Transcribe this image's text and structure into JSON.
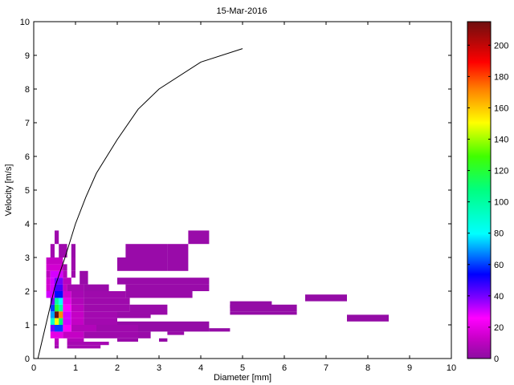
{
  "chart_data": {
    "type": "heatmap",
    "title": "15-Mar-2016",
    "xlabel": "Diameter [mm]",
    "ylabel": "Velocity [m/s]",
    "xlim": [
      0,
      10
    ],
    "ylim": [
      0,
      10
    ],
    "xticks": [
      "0",
      "1",
      "2",
      "3",
      "4",
      "5",
      "6",
      "7",
      "8",
      "9",
      "10"
    ],
    "yticks": [
      "0",
      "1",
      "2",
      "3",
      "4",
      "5",
      "6",
      "7",
      "8",
      "9",
      "10"
    ],
    "grid": false,
    "colorbar": {
      "min": 0,
      "max": 215,
      "ticks": [
        "0",
        "20",
        "40",
        "60",
        "80",
        "100",
        "120",
        "140",
        "160",
        "180",
        "200"
      ],
      "colormap": "hsv"
    },
    "cells": [
      [
        0.5,
        0.3,
        0.6,
        0.4,
        5
      ],
      [
        0.8,
        0.3,
        1.6,
        0.4,
        5
      ],
      [
        0.5,
        0.4,
        0.6,
        0.5,
        8
      ],
      [
        0.8,
        0.4,
        1.8,
        0.5,
        6
      ],
      [
        0.5,
        0.5,
        0.6,
        0.6,
        10
      ],
      [
        0.8,
        0.5,
        1.2,
        0.6,
        8
      ],
      [
        2.0,
        0.5,
        2.5,
        0.6,
        3
      ],
      [
        3.0,
        0.5,
        3.2,
        0.6,
        2
      ],
      [
        0.4,
        0.6,
        0.7,
        0.8,
        20
      ],
      [
        0.7,
        0.6,
        1.2,
        0.8,
        12
      ],
      [
        1.2,
        0.6,
        2.5,
        0.8,
        4
      ],
      [
        2.5,
        0.6,
        2.8,
        0.8,
        3
      ],
      [
        3.2,
        0.7,
        3.6,
        0.8,
        3
      ],
      [
        0.4,
        0.8,
        0.5,
        1.0,
        40
      ],
      [
        0.5,
        0.8,
        0.7,
        1.0,
        60
      ],
      [
        0.7,
        0.8,
        0.9,
        1.0,
        25
      ],
      [
        0.9,
        0.8,
        1.5,
        1.0,
        8
      ],
      [
        1.5,
        0.8,
        2.5,
        1.0,
        4
      ],
      [
        2.5,
        0.8,
        4.2,
        1.0,
        2
      ],
      [
        4.2,
        0.8,
        4.7,
        0.9,
        2
      ],
      [
        0.4,
        1.0,
        0.5,
        1.2,
        90
      ],
      [
        0.5,
        1.0,
        0.6,
        1.2,
        150
      ],
      [
        0.6,
        1.0,
        0.7,
        1.2,
        110
      ],
      [
        0.7,
        1.0,
        0.9,
        1.2,
        30
      ],
      [
        0.9,
        1.0,
        1.2,
        1.2,
        12
      ],
      [
        1.2,
        1.0,
        2.0,
        1.2,
        5
      ],
      [
        2.0,
        1.0,
        3.5,
        1.1,
        2
      ],
      [
        3.5,
        1.0,
        4.2,
        1.1,
        2
      ],
      [
        0.4,
        1.2,
        0.5,
        1.4,
        70
      ],
      [
        0.5,
        1.2,
        0.6,
        1.4,
        215
      ],
      [
        0.6,
        1.2,
        0.7,
        1.4,
        170
      ],
      [
        0.7,
        1.2,
        0.9,
        1.4,
        30
      ],
      [
        0.9,
        1.2,
        1.2,
        1.4,
        12
      ],
      [
        1.2,
        1.2,
        2.0,
        1.4,
        5
      ],
      [
        2.0,
        1.2,
        2.8,
        1.4,
        3
      ],
      [
        0.4,
        1.4,
        0.5,
        1.6,
        60
      ],
      [
        0.5,
        1.4,
        0.6,
        1.6,
        120
      ],
      [
        0.6,
        1.4,
        0.7,
        1.6,
        100
      ],
      [
        0.7,
        1.4,
        0.9,
        1.6,
        25
      ],
      [
        0.9,
        1.4,
        1.2,
        1.6,
        10
      ],
      [
        1.2,
        1.4,
        2.3,
        1.6,
        4
      ],
      [
        2.3,
        1.3,
        3.2,
        1.6,
        3
      ],
      [
        0.4,
        1.6,
        0.5,
        1.8,
        40
      ],
      [
        0.5,
        1.6,
        0.6,
        1.8,
        100
      ],
      [
        0.6,
        1.6,
        0.7,
        1.8,
        80
      ],
      [
        0.7,
        1.6,
        0.9,
        1.8,
        20
      ],
      [
        0.9,
        1.6,
        1.2,
        1.8,
        8
      ],
      [
        1.2,
        1.6,
        2.3,
        1.8,
        4
      ],
      [
        0.3,
        1.8,
        0.5,
        2.0,
        30
      ],
      [
        0.5,
        1.8,
        0.7,
        2.0,
        55
      ],
      [
        0.7,
        1.8,
        0.9,
        2.0,
        15
      ],
      [
        0.9,
        1.8,
        1.2,
        2.0,
        6
      ],
      [
        1.2,
        1.8,
        2.2,
        2.0,
        4
      ],
      [
        2.2,
        1.8,
        3.8,
        2.0,
        3
      ],
      [
        0.3,
        2.0,
        0.4,
        2.2,
        15
      ],
      [
        0.4,
        2.0,
        0.5,
        2.2,
        30
      ],
      [
        0.5,
        2.0,
        0.7,
        2.2,
        45
      ],
      [
        0.7,
        2.0,
        0.8,
        2.2,
        12
      ],
      [
        0.8,
        2.0,
        1.2,
        2.2,
        5
      ],
      [
        1.2,
        2.0,
        1.8,
        2.2,
        3
      ],
      [
        2.2,
        2.0,
        4.2,
        2.2,
        3
      ],
      [
        0.3,
        2.2,
        0.4,
        2.4,
        15
      ],
      [
        0.4,
        2.2,
        0.5,
        2.4,
        30
      ],
      [
        0.5,
        2.2,
        0.7,
        2.4,
        40
      ],
      [
        0.7,
        2.2,
        0.9,
        2.4,
        10
      ],
      [
        1.1,
        2.2,
        1.3,
        2.6,
        3
      ],
      [
        2.0,
        2.2,
        4.2,
        2.4,
        3
      ],
      [
        0.3,
        2.4,
        0.4,
        2.6,
        10
      ],
      [
        0.4,
        2.4,
        0.7,
        2.6,
        30
      ],
      [
        0.7,
        2.4,
        0.8,
        2.6,
        8
      ],
      [
        0.9,
        2.4,
        1.0,
        2.6,
        4
      ],
      [
        0.3,
        2.6,
        0.7,
        2.8,
        15
      ],
      [
        0.7,
        2.6,
        0.8,
        2.8,
        5
      ],
      [
        0.9,
        2.6,
        1.0,
        3.0,
        4
      ],
      [
        2.0,
        2.6,
        3.2,
        3.0,
        3
      ],
      [
        0.3,
        2.8,
        0.7,
        3.0,
        12
      ],
      [
        0.4,
        3.0,
        0.5,
        3.4,
        5
      ],
      [
        0.6,
        3.0,
        0.8,
        3.4,
        4
      ],
      [
        0.9,
        3.0,
        1.0,
        3.4,
        3
      ],
      [
        2.2,
        3.0,
        3.2,
        3.4,
        3
      ],
      [
        3.2,
        2.6,
        3.7,
        3.4,
        3
      ],
      [
        0.5,
        3.4,
        0.6,
        3.8,
        4
      ],
      [
        3.7,
        3.4,
        4.2,
        3.8,
        3
      ],
      [
        4.7,
        1.3,
        6.3,
        1.4,
        2
      ],
      [
        4.7,
        1.4,
        6.3,
        1.6,
        2
      ],
      [
        4.7,
        1.5,
        5.7,
        1.7,
        2
      ],
      [
        6.5,
        1.7,
        7.5,
        1.9,
        2
      ],
      [
        7.5,
        1.1,
        8.5,
        1.3,
        2
      ]
    ],
    "line": {
      "x": [
        0.1,
        0.5,
        0.75,
        1.0,
        1.25,
        1.5,
        2.0,
        2.5,
        3.0,
        4.0,
        5.0
      ],
      "y": [
        0.0,
        2.1,
        3.0,
        4.0,
        4.8,
        5.5,
        6.5,
        7.4,
        8.0,
        8.8,
        9.2
      ]
    }
  }
}
